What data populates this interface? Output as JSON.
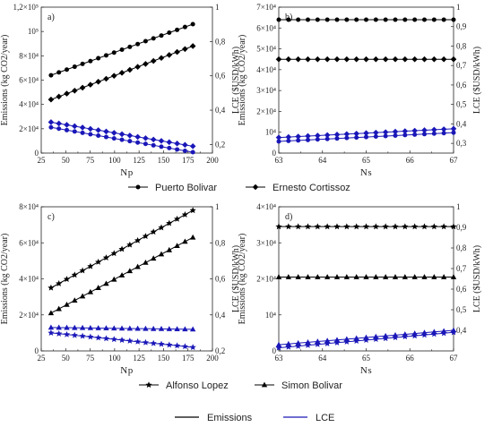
{
  "colors": {
    "emissions": "#000000",
    "lce": "#1a17b8",
    "axis": "#222222"
  },
  "legend_top": [
    {
      "label": "Puerto Bolivar",
      "marker": "circle"
    },
    {
      "label": "Ernesto Cortissoz",
      "marker": "diamond"
    }
  ],
  "legend_mid": [
    {
      "label": "Alfonso Lopez",
      "marker": "star"
    },
    {
      "label": "Simon Bolivar",
      "marker": "triangle"
    }
  ],
  "legend_bottom": [
    {
      "label": "Emissions",
      "color": "#000000"
    },
    {
      "label": "LCE",
      "color": "#1a17b8"
    }
  ],
  "chart_data": [
    {
      "panel": "a)",
      "type": "line",
      "xlabel": "Np",
      "ylabel": "Emissions (kg CO2/year)",
      "y2label": "LCE ($USD/kWh)",
      "xlim": [
        25,
        200
      ],
      "ylim": [
        0,
        120000
      ],
      "y2lim": [
        0.15,
        1
      ],
      "xticks": [
        "25",
        "50",
        "75",
        "100",
        "125",
        "150",
        "175",
        "200"
      ],
      "yticks": [
        "0",
        "2×10⁴",
        "4×10⁴",
        "6×10⁴",
        "8×10⁴",
        "10⁵",
        "1,2×10⁵"
      ],
      "y2ticks": [
        "0,2",
        "0,4",
        "0,6",
        "0,8",
        "1"
      ],
      "series": [
        {
          "name": "Puerto Bolivar",
          "kind": "Emissions",
          "axis": "left",
          "marker": "circle",
          "x": [
            35,
            180
          ],
          "y": [
            64000,
            106000
          ],
          "n": 19
        },
        {
          "name": "Ernesto Cortissoz",
          "kind": "Emissions",
          "axis": "left",
          "marker": "diamond",
          "x": [
            35,
            180
          ],
          "y": [
            44000,
            88000
          ],
          "n": 19
        },
        {
          "name": "Ernesto Cortissoz",
          "kind": "LCE",
          "axis": "right",
          "marker": "diamond",
          "x": [
            35,
            180
          ],
          "y": [
            0.33,
            0.19
          ],
          "n": 19
        },
        {
          "name": "Puerto Bolivar",
          "kind": "LCE",
          "axis": "right",
          "marker": "circle",
          "x": [
            35,
            180
          ],
          "y": [
            0.3,
            0.155
          ],
          "n": 19
        }
      ]
    },
    {
      "panel": "b)",
      "type": "line",
      "xlabel": "Ns",
      "ylabel": "Emissions (kg CO2/year)",
      "y2label": "LCE ($USD/kWh)",
      "xlim": [
        63,
        67
      ],
      "ylim": [
        0,
        70000
      ],
      "y2lim": [
        0.25,
        1
      ],
      "xticks": [
        "63",
        "64",
        "65",
        "66",
        "67"
      ],
      "yticks": [
        "0",
        "10⁴",
        "2×10⁴",
        "3×10⁴",
        "4×10⁴",
        "5×10⁴",
        "6×10⁴",
        "7×10⁴"
      ],
      "y2ticks": [
        "0,3",
        "0,4",
        "0,5",
        "0,6",
        "0,7",
        "0,8",
        "0,9",
        "1"
      ],
      "series": [
        {
          "name": "Puerto Bolivar",
          "kind": "Emissions",
          "axis": "left",
          "marker": "circle",
          "x": [
            63,
            67
          ],
          "y": [
            64000,
            64000
          ],
          "n": 19
        },
        {
          "name": "Ernesto Cortissoz",
          "kind": "Emissions",
          "axis": "left",
          "marker": "diamond",
          "x": [
            63,
            67
          ],
          "y": [
            45000,
            45000
          ],
          "n": 19
        },
        {
          "name": "Ernesto Cortissoz",
          "kind": "LCE",
          "axis": "right",
          "marker": "diamond",
          "x": [
            63,
            67
          ],
          "y": [
            0.33,
            0.375
          ],
          "n": 19
        },
        {
          "name": "Puerto Bolivar",
          "kind": "LCE",
          "axis": "right",
          "marker": "circle",
          "x": [
            63,
            67
          ],
          "y": [
            0.31,
            0.355
          ],
          "n": 19
        }
      ]
    },
    {
      "panel": "c)",
      "type": "line",
      "xlabel": "Np",
      "ylabel": "Emissions (kg CO2/year)",
      "y2label": "LCE ($USD/kWh)",
      "xlim": [
        25,
        200
      ],
      "ylim": [
        0,
        80000
      ],
      "y2lim": [
        0.2,
        1
      ],
      "xticks": [
        "25",
        "50",
        "75",
        "100",
        "125",
        "150",
        "175",
        "200"
      ],
      "yticks": [
        "0",
        "2×10⁴",
        "4×10⁴",
        "6×10⁴",
        "8×10⁴"
      ],
      "y2ticks": [
        "0,2",
        "0,4",
        "0,6",
        "0,8",
        "1"
      ],
      "series": [
        {
          "name": "Alfonso Lopez",
          "kind": "Emissions",
          "axis": "left",
          "marker": "star",
          "x": [
            35,
            180
          ],
          "y": [
            35000,
            78000
          ],
          "n": 19
        },
        {
          "name": "Simon Bolivar",
          "kind": "Emissions",
          "axis": "left",
          "marker": "triangle",
          "x": [
            35,
            180
          ],
          "y": [
            21000,
            63000
          ],
          "n": 19
        },
        {
          "name": "Simon Bolivar",
          "kind": "LCE",
          "axis": "right",
          "marker": "triangle",
          "x": [
            35,
            180
          ],
          "y": [
            0.33,
            0.32
          ],
          "n": 19
        },
        {
          "name": "Alfonso Lopez",
          "kind": "LCE",
          "axis": "right",
          "marker": "star",
          "x": [
            35,
            180
          ],
          "y": [
            0.3,
            0.22
          ],
          "n": 19
        }
      ]
    },
    {
      "panel": "d)",
      "type": "line",
      "xlabel": "Ns",
      "ylabel": "Emissions (kg CO2/year)",
      "y2label": "LCE ($USD/kWh)",
      "xlim": [
        63,
        67
      ],
      "ylim": [
        0,
        40000
      ],
      "y2lim": [
        0.3,
        1
      ],
      "xticks": [
        "63",
        "64",
        "65",
        "66",
        "67"
      ],
      "yticks": [
        "0",
        "10⁴",
        "2×10⁴",
        "3×10⁴",
        "4×10⁴"
      ],
      "y2ticks": [
        "0,4",
        "0,5",
        "0,6",
        "0,7",
        "0,8",
        "0,9",
        "1"
      ],
      "series": [
        {
          "name": "Alfonso Lopez",
          "kind": "Emissions",
          "axis": "left",
          "marker": "star",
          "x": [
            63,
            67
          ],
          "y": [
            34500,
            34500
          ],
          "n": 19
        },
        {
          "name": "Simon Bolivar",
          "kind": "Emissions",
          "axis": "left",
          "marker": "triangle",
          "x": [
            63,
            67
          ],
          "y": [
            20500,
            20500
          ],
          "n": 19
        },
        {
          "name": "Simon Bolivar",
          "kind": "LCE",
          "axis": "right",
          "marker": "triangle",
          "x": [
            63,
            67
          ],
          "y": [
            0.33,
            0.4
          ],
          "n": 19
        },
        {
          "name": "Alfonso Lopez",
          "kind": "LCE",
          "axis": "right",
          "marker": "star",
          "x": [
            63,
            67
          ],
          "y": [
            0.315,
            0.39
          ],
          "n": 19
        }
      ]
    }
  ]
}
